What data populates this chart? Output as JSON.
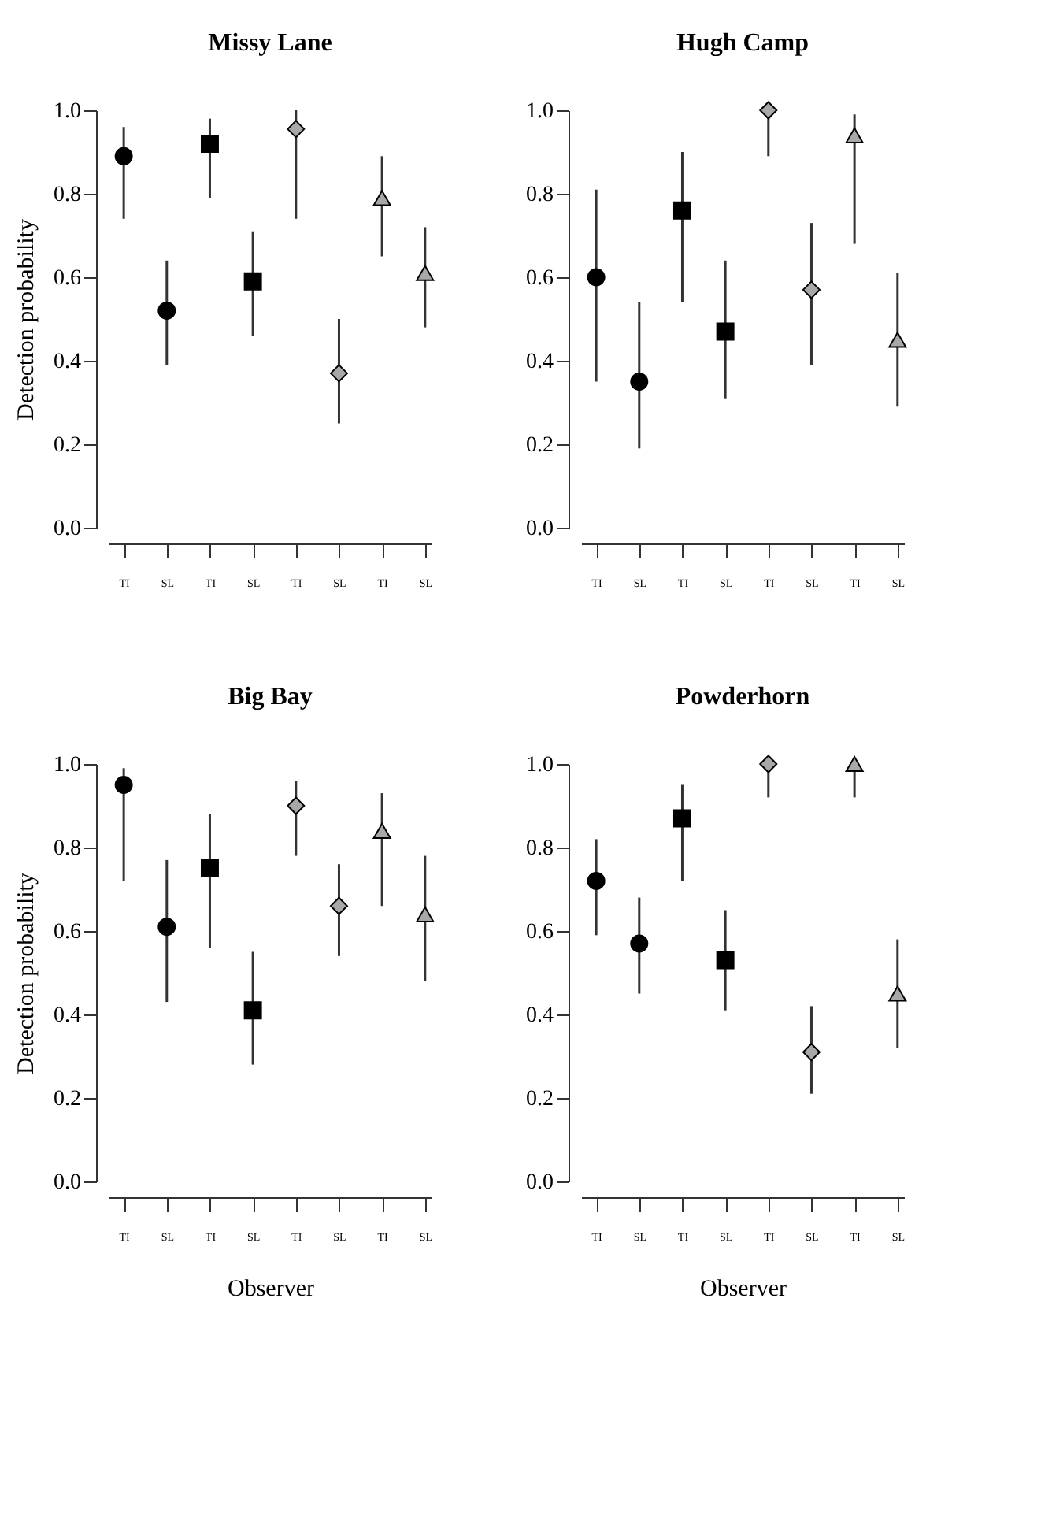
{
  "chart_data": [
    {
      "type": "scatter",
      "title": "Missy Lane",
      "ylabel": "Detection probability",
      "categories": [
        "TI",
        "SL",
        "TI",
        "SL",
        "TI",
        "SL",
        "TI",
        "SL"
      ],
      "ylim": [
        0,
        1
      ],
      "yticks": [
        {
          "value": 0,
          "label": "0.0"
        },
        {
          "value": 0.2,
          "label": "0.2"
        },
        {
          "value": 0.4,
          "label": "0.4"
        },
        {
          "value": 0.6,
          "label": "0.6"
        },
        {
          "value": 0.8,
          "label": "0.8"
        },
        {
          "value": 1,
          "label": "1.0"
        }
      ],
      "grid": false,
      "series": [
        {
          "marker": "circle",
          "color": "#000000",
          "values": [
            0.89,
            0.52,
            null,
            null,
            null,
            null,
            null,
            null
          ],
          "errors": [
            [
              0.74,
              0.96
            ],
            [
              0.39,
              0.64
            ],
            null,
            null,
            null,
            null,
            null,
            null
          ]
        },
        {
          "marker": "square",
          "color": "#000000",
          "values": [
            null,
            null,
            0.92,
            0.59,
            null,
            null,
            null,
            null
          ],
          "errors": [
            null,
            null,
            [
              0.79,
              0.98
            ],
            [
              0.46,
              0.71
            ],
            null,
            null,
            null,
            null
          ]
        },
        {
          "marker": "diamond",
          "color": "#a8a8a8",
          "values": [
            null,
            null,
            null,
            null,
            0.955,
            0.37,
            null,
            null
          ],
          "errors": [
            null,
            null,
            null,
            null,
            [
              0.74,
              1.0
            ],
            [
              0.25,
              0.5
            ],
            null,
            null
          ]
        },
        {
          "marker": "triangle",
          "color": "#a8a8a8",
          "values": [
            null,
            null,
            null,
            null,
            null,
            null,
            0.79,
            0.61
          ],
          "errors": [
            null,
            null,
            null,
            null,
            null,
            null,
            [
              0.65,
              0.89
            ],
            [
              0.48,
              0.72
            ]
          ]
        }
      ]
    },
    {
      "type": "scatter",
      "title": "Hugh Camp",
      "categories": [
        "TI",
        "SL",
        "TI",
        "SL",
        "TI",
        "SL",
        "TI",
        "SL"
      ],
      "ylim": [
        0,
        1
      ],
      "yticks": [
        {
          "value": 0,
          "label": "0.0"
        },
        {
          "value": 0.2,
          "label": "0.2"
        },
        {
          "value": 0.4,
          "label": "0.4"
        },
        {
          "value": 0.6,
          "label": "0.6"
        },
        {
          "value": 0.8,
          "label": "0.8"
        },
        {
          "value": 1,
          "label": "1.0"
        }
      ],
      "grid": false,
      "series": [
        {
          "marker": "circle",
          "color": "#000000",
          "values": [
            0.6,
            0.35,
            null,
            null,
            null,
            null,
            null,
            null
          ],
          "errors": [
            [
              0.35,
              0.81
            ],
            [
              0.19,
              0.54
            ],
            null,
            null,
            null,
            null,
            null,
            null
          ]
        },
        {
          "marker": "square",
          "color": "#000000",
          "values": [
            null,
            null,
            0.76,
            0.47,
            null,
            null,
            null,
            null
          ],
          "errors": [
            null,
            null,
            [
              0.54,
              0.9
            ],
            [
              0.31,
              0.64
            ],
            null,
            null,
            null,
            null
          ]
        },
        {
          "marker": "diamond",
          "color": "#a8a8a8",
          "values": [
            null,
            null,
            null,
            null,
            1.0,
            0.57,
            null,
            null
          ],
          "errors": [
            null,
            null,
            null,
            null,
            [
              0.89,
              1.0
            ],
            [
              0.39,
              0.73
            ],
            null,
            null
          ]
        },
        {
          "marker": "triangle",
          "color": "#a8a8a8",
          "values": [
            null,
            null,
            null,
            null,
            null,
            null,
            0.94,
            0.45
          ],
          "errors": [
            null,
            null,
            null,
            null,
            null,
            null,
            [
              0.68,
              0.99
            ],
            [
              0.29,
              0.61
            ]
          ]
        }
      ]
    },
    {
      "type": "scatter",
      "title": "Big Bay",
      "xlabel": "Observer",
      "ylabel": "Detection probability",
      "categories": [
        "TI",
        "SL",
        "TI",
        "SL",
        "TI",
        "SL",
        "TI",
        "SL"
      ],
      "ylim": [
        0,
        1
      ],
      "yticks": [
        {
          "value": 0,
          "label": "0.0"
        },
        {
          "value": 0.2,
          "label": "0.2"
        },
        {
          "value": 0.4,
          "label": "0.4"
        },
        {
          "value": 0.6,
          "label": "0.6"
        },
        {
          "value": 0.8,
          "label": "0.8"
        },
        {
          "value": 1,
          "label": "1.0"
        }
      ],
      "grid": false,
      "series": [
        {
          "marker": "circle",
          "color": "#000000",
          "values": [
            0.95,
            0.61,
            null,
            null,
            null,
            null,
            null,
            null
          ],
          "errors": [
            [
              0.72,
              0.99
            ],
            [
              0.43,
              0.77
            ],
            null,
            null,
            null,
            null,
            null,
            null
          ]
        },
        {
          "marker": "square",
          "color": "#000000",
          "values": [
            null,
            null,
            0.75,
            0.41,
            null,
            null,
            null,
            null
          ],
          "errors": [
            null,
            null,
            [
              0.56,
              0.88
            ],
            [
              0.28,
              0.55
            ],
            null,
            null,
            null,
            null
          ]
        },
        {
          "marker": "diamond",
          "color": "#a8a8a8",
          "values": [
            null,
            null,
            null,
            null,
            0.9,
            0.66,
            null,
            null
          ],
          "errors": [
            null,
            null,
            null,
            null,
            [
              0.78,
              0.96
            ],
            [
              0.54,
              0.76
            ],
            null,
            null
          ]
        },
        {
          "marker": "triangle",
          "color": "#a8a8a8",
          "values": [
            null,
            null,
            null,
            null,
            null,
            null,
            0.84,
            0.64
          ],
          "errors": [
            null,
            null,
            null,
            null,
            null,
            null,
            [
              0.66,
              0.93
            ],
            [
              0.48,
              0.78
            ]
          ]
        }
      ]
    },
    {
      "type": "scatter",
      "title": "Powderhorn",
      "xlabel": "Observer",
      "categories": [
        "TI",
        "SL",
        "TI",
        "SL",
        "TI",
        "SL",
        "TI",
        "SL"
      ],
      "ylim": [
        0,
        1
      ],
      "yticks": [
        {
          "value": 0,
          "label": "0.0"
        },
        {
          "value": 0.2,
          "label": "0.2"
        },
        {
          "value": 0.4,
          "label": "0.4"
        },
        {
          "value": 0.6,
          "label": "0.6"
        },
        {
          "value": 0.8,
          "label": "0.8"
        },
        {
          "value": 1,
          "label": "1.0"
        }
      ],
      "grid": false,
      "series": [
        {
          "marker": "circle",
          "color": "#000000",
          "values": [
            0.72,
            0.57,
            null,
            null,
            null,
            null,
            null,
            null
          ],
          "errors": [
            [
              0.59,
              0.82
            ],
            [
              0.45,
              0.68
            ],
            null,
            null,
            null,
            null,
            null,
            null
          ]
        },
        {
          "marker": "square",
          "color": "#000000",
          "values": [
            null,
            null,
            0.87,
            0.53,
            null,
            null,
            null,
            null
          ],
          "errors": [
            null,
            null,
            [
              0.72,
              0.95
            ],
            [
              0.41,
              0.65
            ],
            null,
            null,
            null,
            null
          ]
        },
        {
          "marker": "diamond",
          "color": "#a8a8a8",
          "values": [
            null,
            null,
            null,
            null,
            1.0,
            0.31,
            null,
            null
          ],
          "errors": [
            null,
            null,
            null,
            null,
            [
              0.92,
              1.0
            ],
            [
              0.21,
              0.42
            ],
            null,
            null
          ]
        },
        {
          "marker": "triangle",
          "color": "#a8a8a8",
          "values": [
            null,
            null,
            null,
            null,
            null,
            null,
            1.0,
            0.45
          ],
          "errors": [
            null,
            null,
            null,
            null,
            null,
            null,
            [
              0.92,
              1.0
            ],
            [
              0.32,
              0.58
            ]
          ]
        }
      ]
    }
  ]
}
